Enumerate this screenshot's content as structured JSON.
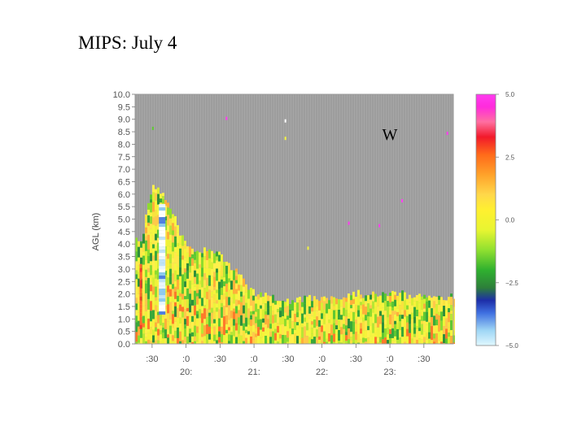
{
  "slide": {
    "title": "MIPS: July 4"
  },
  "chart_data": {
    "type": "heatmap",
    "title": "",
    "panel_label": "W",
    "ylabel": "AGL  (km)",
    "xlabel": "",
    "ylim": [
      0.0,
      10.0
    ],
    "y_ticks": [
      "0.0",
      "0.5",
      "1.0",
      "1.5",
      "2.0",
      "2.5",
      "3.0",
      "3.5",
      "4.0",
      "4.5",
      "5.0",
      "5.5",
      "6.0",
      "6.5",
      "7.0",
      "7.5",
      "8.0",
      "8.5",
      "9.0",
      "9.5",
      "10.0"
    ],
    "x_ticks": [
      {
        "top": ":30",
        "bottom": ""
      },
      {
        "top": ":0",
        "bottom": "20:"
      },
      {
        "top": ":30",
        "bottom": ""
      },
      {
        "top": ":0",
        "bottom": "21:"
      },
      {
        "top": ":30",
        "bottom": ""
      },
      {
        "top": ":0",
        "bottom": "22:"
      },
      {
        "top": ":30",
        "bottom": ""
      },
      {
        "top": ":0",
        "bottom": "23:"
      },
      {
        "top": ":30",
        "bottom": ""
      }
    ],
    "colorbar": {
      "range": [
        -5.0,
        5.0
      ],
      "ticks": [
        "5.0",
        "2.5",
        "0.0",
        "−2.5",
        "−5.0"
      ]
    },
    "missing_color": "#9d9d9d",
    "approx_echo_top_km": [
      {
        "time": "19:20",
        "top": 4.2
      },
      {
        "time": "19:30",
        "top": 6.5
      },
      {
        "time": "19:45",
        "top": 5.5
      },
      {
        "time": "20:00",
        "top": 3.8
      },
      {
        "time": "20:30",
        "top": 3.6
      },
      {
        "time": "21:00",
        "top": 2.0
      },
      {
        "time": "21:30",
        "top": 1.7
      },
      {
        "time": "22:00",
        "top": 1.9
      },
      {
        "time": "22:30",
        "top": 2.0
      },
      {
        "time": "23:00",
        "top": 2.0
      },
      {
        "time": "23:30",
        "top": 1.9
      },
      {
        "time": "23:40",
        "top": 1.9
      }
    ]
  }
}
